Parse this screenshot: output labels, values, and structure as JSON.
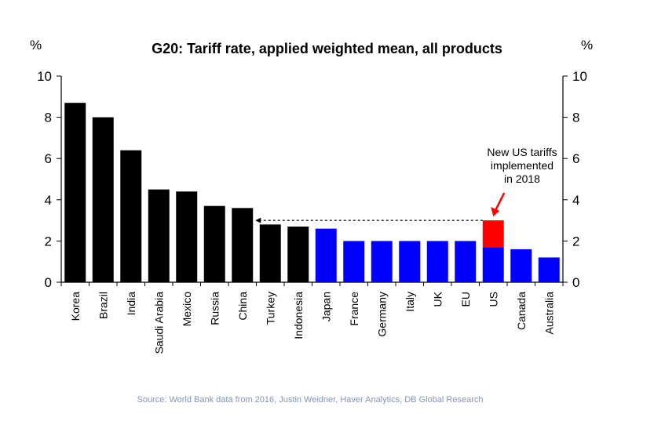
{
  "chart_data": {
    "type": "bar",
    "title": "G20: Tariff rate, applied weighted mean, all products",
    "unit_left": "%",
    "unit_right": "%",
    "categories": [
      "Korea",
      "Brazil",
      "India",
      "Saudi Arabia",
      "Mexico",
      "Russia",
      "China",
      "Turkey",
      "Indonesia",
      "Japan",
      "France",
      "Germany",
      "Italy",
      "UK",
      "EU",
      "US",
      "Canada",
      "Australia"
    ],
    "values": [
      8.7,
      8.0,
      6.4,
      4.5,
      4.4,
      3.7,
      3.6,
      2.8,
      2.7,
      2.6,
      2.0,
      2.0,
      2.0,
      2.0,
      2.0,
      1.7,
      1.6,
      1.2
    ],
    "bar_colors": [
      "#000000",
      "#000000",
      "#000000",
      "#000000",
      "#000000",
      "#000000",
      "#000000",
      "#000000",
      "#000000",
      "#0000ff",
      "#0000ff",
      "#0000ff",
      "#0000ff",
      "#0000ff",
      "#0000ff",
      "#0000ff",
      "#0000ff",
      "#0000ff"
    ],
    "new_tariff": {
      "category": "US",
      "base": 1.7,
      "total": 3.0,
      "color": "#ff0000"
    },
    "reference_arrow": {
      "from_category": "US",
      "to_category": "China",
      "value": 3.0,
      "style": "dashed"
    },
    "annotation": [
      "New US tariffs",
      "implemented",
      "in 2018"
    ],
    "annotation_arrow_color": "#ff0000",
    "ylim": [
      0,
      10
    ],
    "yticks": [
      0,
      2,
      4,
      6,
      8,
      10
    ],
    "secondary_yaxis": true,
    "grid": false,
    "legend": "none",
    "source": "Source: World Bank data from 2016, Justin Weidner, Haver Analytics, DB Global Research"
  }
}
